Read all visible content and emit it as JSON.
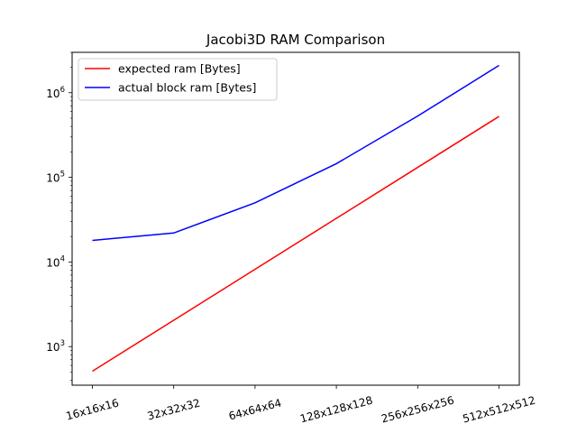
{
  "chart_data": {
    "type": "line",
    "title": "Jacobi3D RAM Comparison",
    "xlabel": "",
    "ylabel": "",
    "categories": [
      "16x16x16",
      "32x32x32",
      "64x64x64",
      "128x128x128",
      "256x256x256",
      "512x512x512"
    ],
    "yscale": "log",
    "ylim": [
      350,
      3000000
    ],
    "yticks": [
      {
        "value": 1000,
        "base": "10",
        "exp": "3"
      },
      {
        "value": 10000,
        "base": "10",
        "exp": "4"
      },
      {
        "value": 100000,
        "base": "10",
        "exp": "5"
      },
      {
        "value": 1000000,
        "base": "10",
        "exp": "6"
      }
    ],
    "grid": false,
    "legend_position": "top-left",
    "series": [
      {
        "name": "expected ram [Bytes]",
        "color": "#ff0000",
        "values": [
          512,
          2048,
          8192,
          32768,
          131072,
          524288
        ]
      },
      {
        "name": "actual block ram [Bytes]",
        "color": "#0000ff",
        "values": [
          18000,
          22000,
          50000,
          145000,
          530000,
          2100000
        ]
      }
    ]
  }
}
